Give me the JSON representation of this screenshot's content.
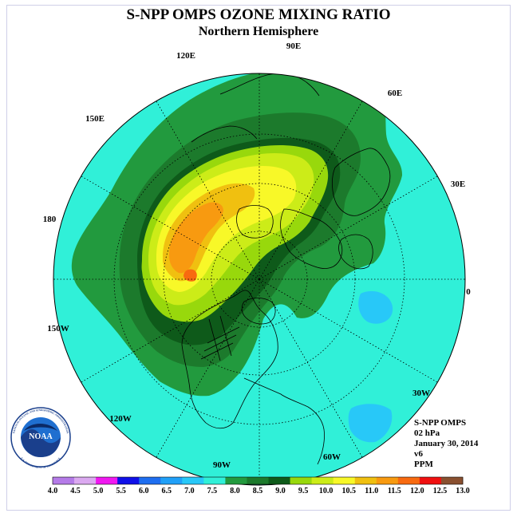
{
  "header": {
    "title": "S-NPP OMPS OZONE MIXING RATIO",
    "subtitle": "Northern Hemisphere"
  },
  "map": {
    "projection": "north-polar-stereographic",
    "longitude_labels": [
      {
        "id": "lon-90e",
        "text": "90E"
      },
      {
        "id": "lon-120e",
        "text": "120E"
      },
      {
        "id": "lon-60e",
        "text": "60E"
      },
      {
        "id": "lon-150e",
        "text": "150E"
      },
      {
        "id": "lon-30e",
        "text": "30E"
      },
      {
        "id": "lon-180",
        "text": "180"
      },
      {
        "id": "lon-0",
        "text": "0"
      },
      {
        "id": "lon-150w",
        "text": "150W"
      },
      {
        "id": "lon-30w",
        "text": "30W"
      },
      {
        "id": "lon-120w",
        "text": "120W"
      },
      {
        "id": "lon-60w",
        "text": "60W"
      },
      {
        "id": "lon-90w",
        "text": "90W"
      }
    ]
  },
  "info": {
    "instrument": "S-NPP OMPS",
    "level": "02 hPa",
    "date": "January 30, 2014",
    "version": "v6",
    "units": "PPM"
  },
  "logo": {
    "text": "NOAA",
    "ring_text": "NATIONAL OCEANIC AND ATMOSPHERIC ADMINISTRATION",
    "ring_text_bottom": "U.S. DEPARTMENT OF COMMERCE"
  },
  "colorbar": {
    "labels": [
      "4.0",
      "4.5",
      "5.0",
      "5.5",
      "6.0",
      "6.5",
      "7.0",
      "7.5",
      "8.0",
      "8.5",
      "9.0",
      "9.5",
      "10.0",
      "10.5",
      "11.0",
      "11.5",
      "12.0",
      "12.5",
      "13.0"
    ],
    "colors": [
      "#b57be8",
      "#dba9f0",
      "#f018f0",
      "#1010e8",
      "#1e6ef0",
      "#20a0f8",
      "#28c8f8",
      "#30f0d8",
      "#229a3e",
      "#1c7a2c",
      "#0e5a1a",
      "#98d80c",
      "#ccec18",
      "#f8f828",
      "#f0c010",
      "#f89a10",
      "#f86a10",
      "#f01010",
      "#8a5030"
    ]
  }
}
